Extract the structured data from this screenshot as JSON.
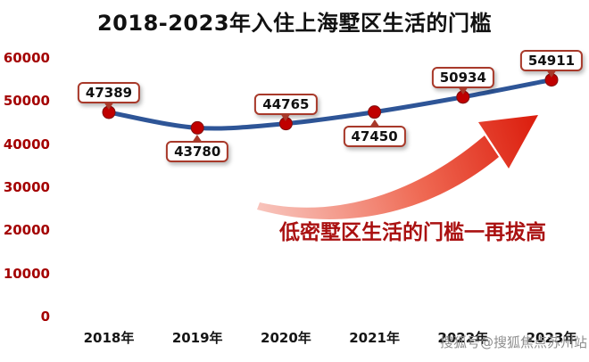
{
  "chart_data": {
    "type": "line",
    "title": "2018-2023年入住上海墅区生活的门槛",
    "categories": [
      "2018年",
      "2019年",
      "2020年",
      "2021年",
      "2022年",
      "2023年"
    ],
    "values": [
      47389,
      43780,
      44765,
      47450,
      50934,
      54911
    ],
    "data_labels": [
      "47389",
      "43780",
      "44765",
      "47450",
      "50934",
      "54911"
    ],
    "data_label_positions": [
      "above",
      "below",
      "above",
      "below",
      "above",
      "above"
    ],
    "xlabel": "",
    "ylabel": "",
    "ylim": [
      0,
      60000
    ],
    "ytick_labels": [
      "0",
      "10000",
      "20000",
      "30000",
      "40000",
      "50000",
      "60000"
    ],
    "grid": false,
    "legend": "none",
    "line_color": "#2e5597",
    "marker_color": "#c00000",
    "annotation": {
      "text": "低密墅区生活的门槛一再拔高",
      "color": "#aa1111"
    },
    "arrow_colors": {
      "start": "#f7beb5",
      "mid": "#ef6a54",
      "end": "#dc1f0f"
    }
  },
  "watermark": "搜狐号@搜狐焦点苏州站"
}
